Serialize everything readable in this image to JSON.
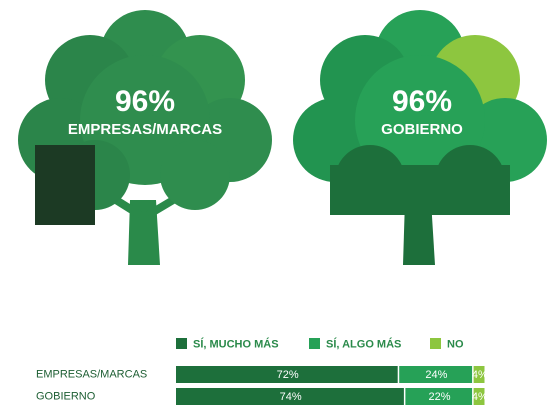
{
  "highlights": [
    {
      "value": "96%",
      "label": "EMPRESAS/MARCAS"
    },
    {
      "value": "96%",
      "label": "GOBIERNO"
    }
  ],
  "chart_data": {
    "type": "stacked-bar-horizontal",
    "categories": [
      "EMPRESAS/MARCAS",
      "GOBIERNO"
    ],
    "series": [
      {
        "name": "SÍ, MUCHO MÁS",
        "color": "#1d6f3b",
        "values": [
          72,
          74
        ],
        "value_labels": [
          "72%",
          "74%"
        ]
      },
      {
        "name": "SÍ, ALGO MÁS",
        "color": "#26a157",
        "values": [
          24,
          22
        ],
        "value_labels": [
          "24%",
          "22%"
        ]
      },
      {
        "name": "NO",
        "color": "#8dc63f",
        "values": [
          4,
          4
        ],
        "value_labels": [
          "4%",
          "4%"
        ]
      }
    ]
  }
}
